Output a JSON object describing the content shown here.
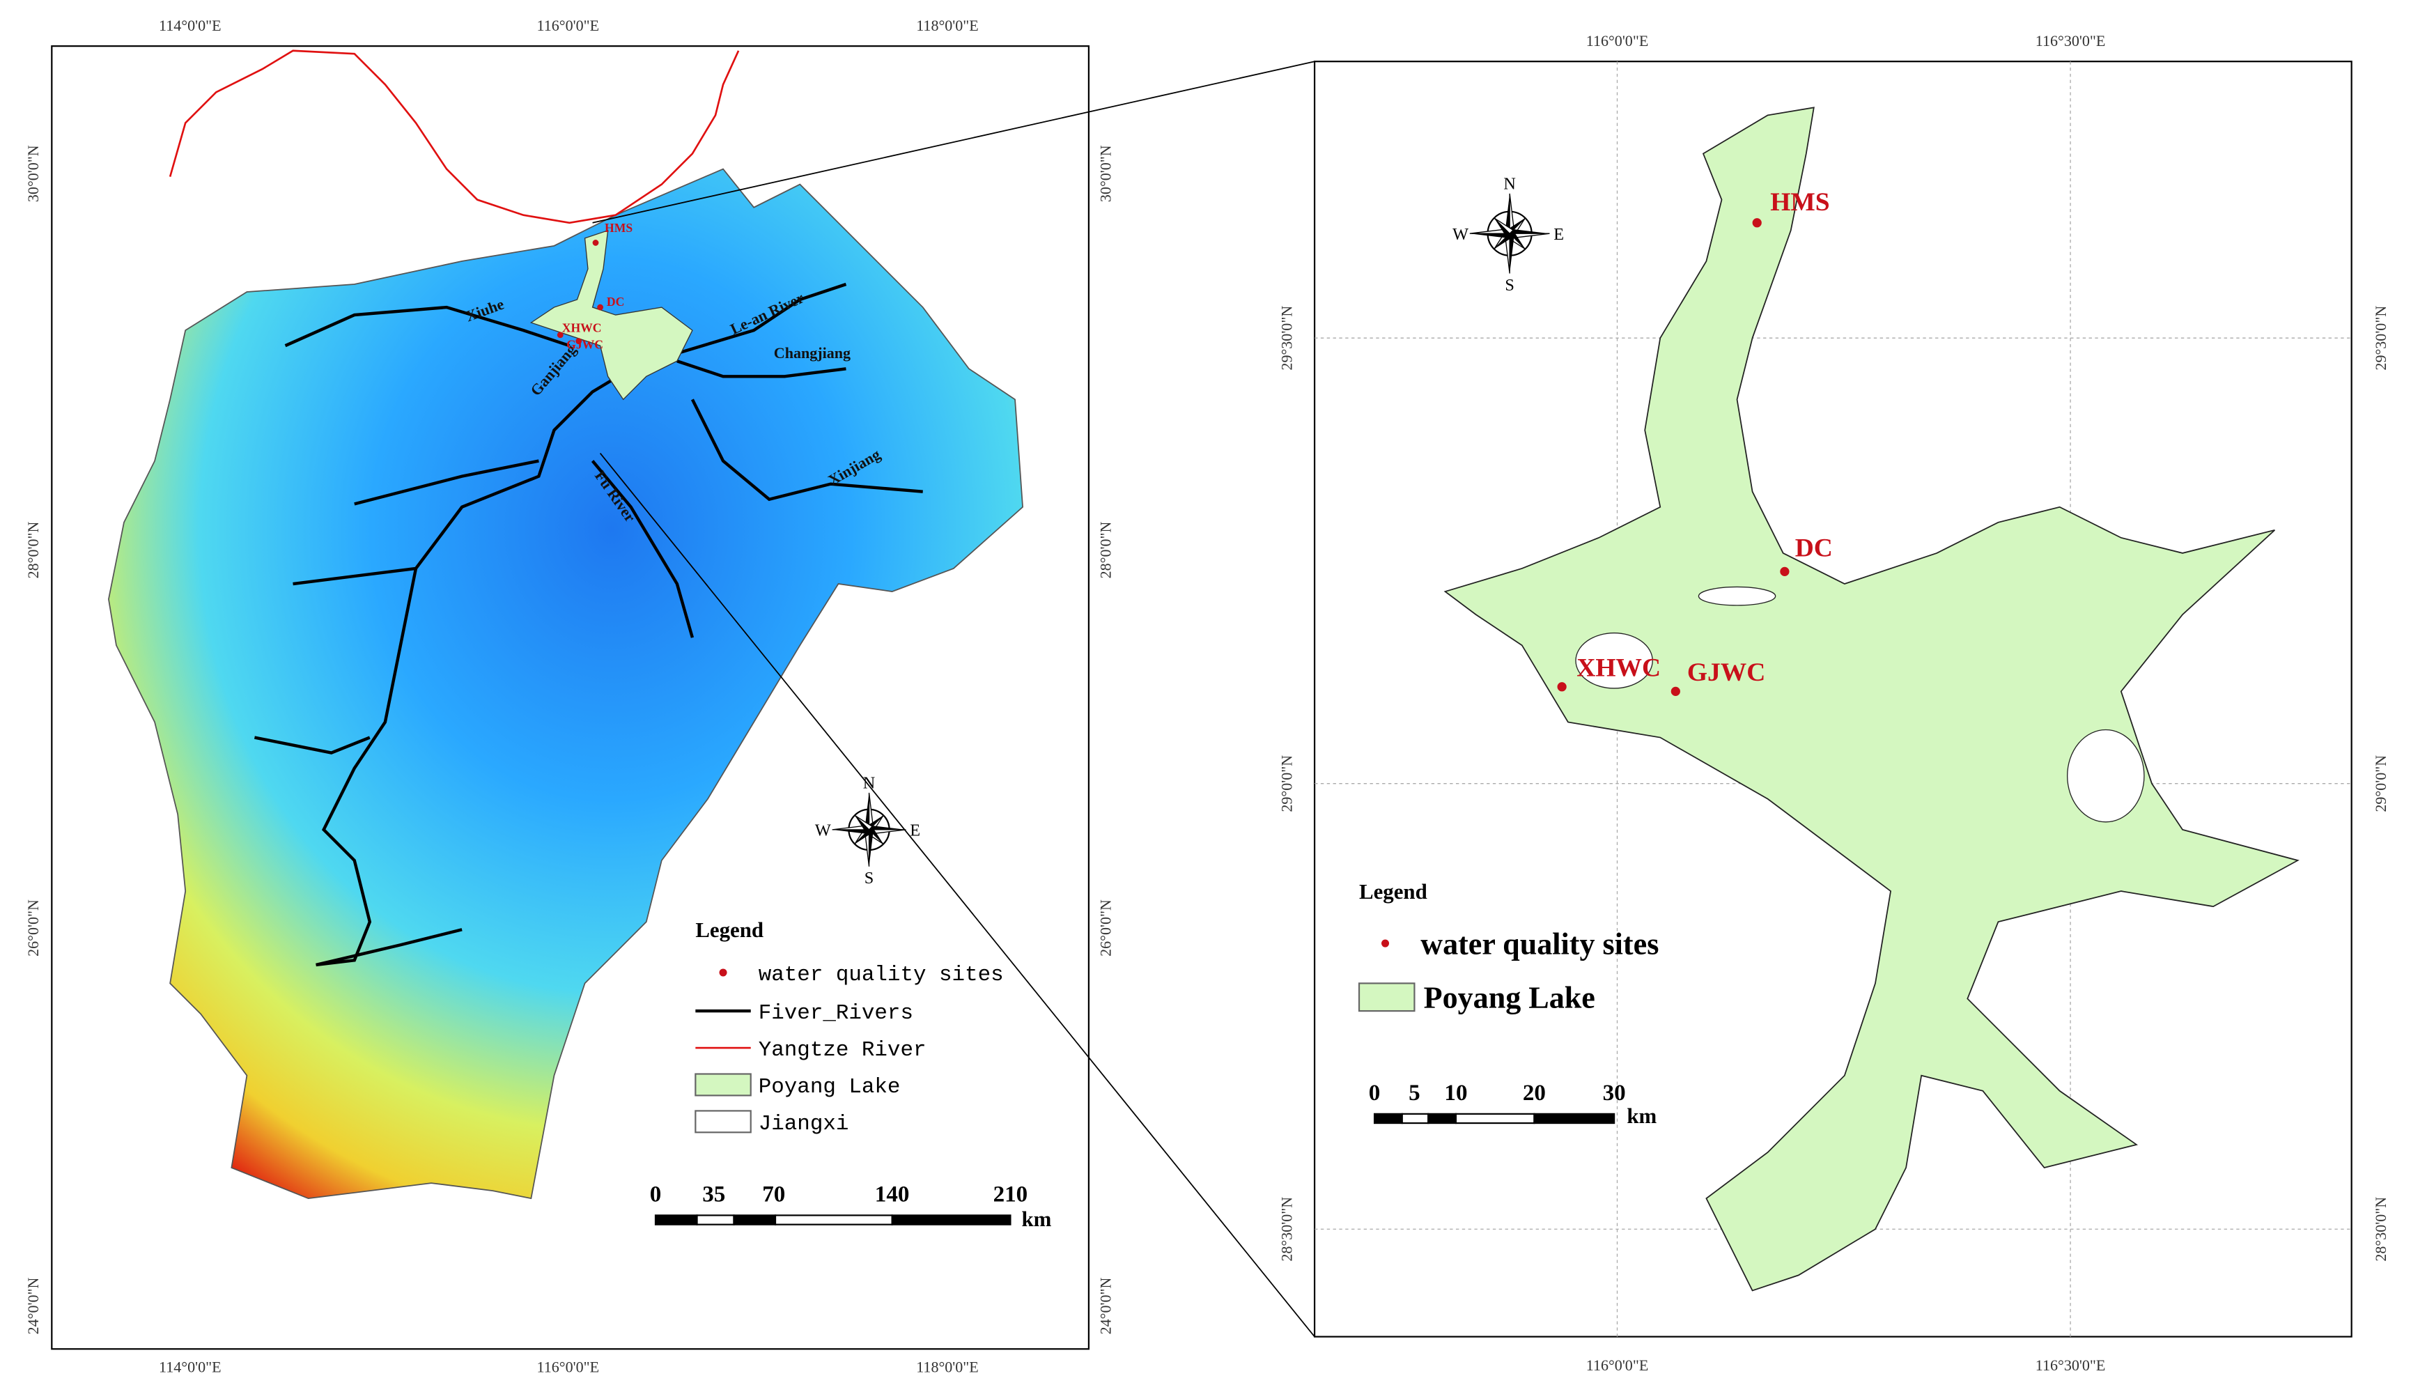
{
  "left_map": {
    "top_labels": [
      "114°0'0\"E",
      "116°0'0\"E",
      "118°0'0\"E"
    ],
    "bottom_labels": [
      "114°0'0\"E",
      "116°0'0\"E",
      "118°0'0\"E"
    ],
    "left_labels": [
      "30°0'0\"N",
      "28°0'0\"N",
      "26°0'0\"N",
      "24°0'0\"N"
    ],
    "right_labels": [
      "30°0'0\"N",
      "28°0'0\"N",
      "26°0'0\"N",
      "24°0'0\"N"
    ],
    "river_labels": [
      "Xiuhe",
      "Le-an River",
      "Changjiang",
      "Ganjiang",
      "Xinjiang",
      "Fu River"
    ],
    "site_labels": [
      "HMS",
      "DC",
      "XHWC",
      "GJWC"
    ],
    "legend": {
      "title": "Legend",
      "items": [
        "water quality  sites",
        "Fiver_Rivers",
        "Yangtze River",
        "Poyang Lake",
        "Jiangxi"
      ]
    },
    "scale": {
      "ticks": [
        "0",
        "35",
        "70",
        "140",
        "210"
      ],
      "unit": "km"
    },
    "compass": {
      "n": "N",
      "s": "S",
      "e": "E",
      "w": "W"
    }
  },
  "right_map": {
    "top_labels": [
      "116°0'0\"E",
      "116°30'0\"E"
    ],
    "bottom_labels": [
      "116°0'0\"E",
      "116°30'0\"E"
    ],
    "left_labels": [
      "29°30'0\"N",
      "29°0'0\"N",
      "28°30'0\"N"
    ],
    "right_labels": [
      "29°30'0\"N",
      "29°0'0\"N",
      "28°30'0\"N"
    ],
    "site_labels": [
      "HMS",
      "DC",
      "XHWC",
      "GJWC"
    ],
    "legend": {
      "title": "Legend",
      "items": [
        "water quality  sites",
        "Poyang Lake"
      ]
    },
    "scale": {
      "ticks": [
        "0",
        "5",
        "10",
        "20",
        "30"
      ],
      "unit": "km"
    },
    "compass": {
      "n": "N",
      "s": "S",
      "e": "E",
      "w": "W"
    }
  }
}
